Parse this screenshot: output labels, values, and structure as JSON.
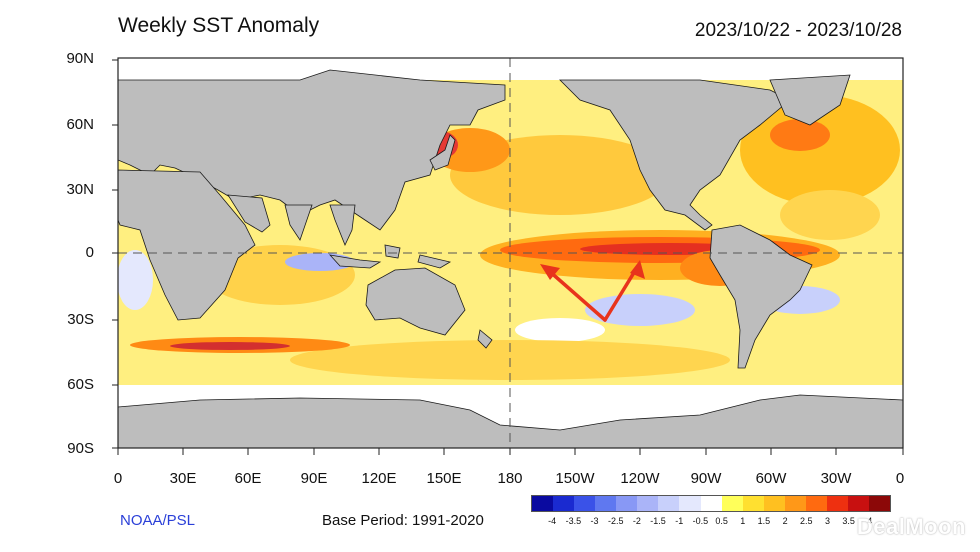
{
  "header": {
    "title": "Weekly SST Anomaly",
    "date_range": "2023/10/22 - 2023/10/28"
  },
  "axes": {
    "lat_labels": [
      "90N",
      "60N",
      "30N",
      "0",
      "30S",
      "60S",
      "90S"
    ],
    "lon_labels": [
      "0",
      "30E",
      "60E",
      "90E",
      "120E",
      "150E",
      "180",
      "150W",
      "120W",
      "90W",
      "60W",
      "30W",
      "0"
    ]
  },
  "footer": {
    "credit": "NOAA/PSL",
    "base_period": "Base Period: 1991-2020",
    "watermark": "DealMoon"
  },
  "colorbar": {
    "labels": [
      "-4",
      "-3.5",
      "-3",
      "-2.5",
      "-2",
      "-1.5",
      "-1",
      "-0.5",
      "0.5",
      "1",
      "1.5",
      "2",
      "2.5",
      "3",
      "3.5",
      "4"
    ],
    "colors": [
      "#0a0aa0",
      "#1a2ad0",
      "#3a52e8",
      "#5f78f0",
      "#8898f5",
      "#aab4f8",
      "#c8d0fb",
      "#e4e8fd",
      "#ffffff",
      "#ffff5a",
      "#ffe030",
      "#ffc020",
      "#ff9818",
      "#ff6a10",
      "#ee3010",
      "#c81010",
      "#8c0808"
    ]
  },
  "palette": {
    "land": "#bdbdbd",
    "ocean_warm_light": "#fff176",
    "ocean_warm": "#ffd54f",
    "ocean_hot": "#ff8f00",
    "ocean_very_hot": "#e53935",
    "ocean_cool": "#aab4f8",
    "arrow": "#e8331c",
    "ice": "#ffffff"
  }
}
